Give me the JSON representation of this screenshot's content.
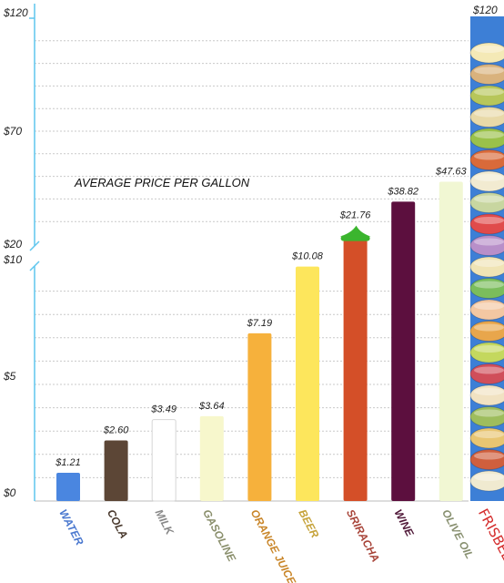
{
  "chart_data": {
    "type": "bar",
    "title": "AVERAGE PRICE PER GALLON",
    "xlabel": "",
    "ylabel": "",
    "y_axis": {
      "broken": true,
      "lower_ticks": [
        "$0",
        "$5",
        "$10"
      ],
      "upper_ticks": [
        "$20",
        "$70",
        "$120"
      ],
      "lower_range": [
        0,
        10
      ],
      "upper_range": [
        20,
        120
      ]
    },
    "right_axis_label": "$120",
    "grid": true,
    "categories": [
      "WATER",
      "COLA",
      "MILK",
      "GASOLINE",
      "ORANGE JUICE",
      "BEER",
      "SRIRACHA",
      "WINE",
      "OLIVE OIL",
      "FRISBEE"
    ],
    "values": [
      1.21,
      2.6,
      3.49,
      3.64,
      7.19,
      10.08,
      21.76,
      38.82,
      47.63,
      null
    ],
    "data_labels": [
      "$1.21",
      "$2.60",
      "$3.49",
      "$3.64",
      "$7.19",
      "$10.08",
      "$21.76",
      "$38.82",
      "$47.63",
      ""
    ],
    "bar_colors": [
      "#4a86e0",
      "#5c4636",
      "#ffffff",
      "#f7f7cc",
      "#f6b13c",
      "#fde65c",
      "#d44f28",
      "#5c0f3e",
      "#f1f7d3",
      "#3d7fd6"
    ],
    "label_colors": [
      "#4a78cf",
      "#4a3a2e",
      "#888888",
      "#8a8f6c",
      "#c9862a",
      "#c6a33b",
      "#a8453a",
      "#4f1737",
      "#889070",
      "#d42a2a"
    ]
  }
}
